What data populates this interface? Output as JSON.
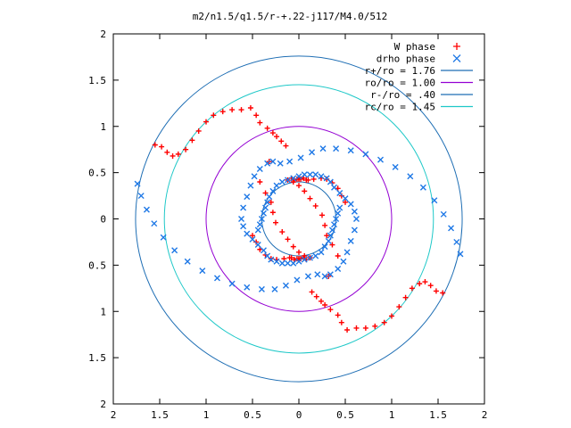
{
  "chart_data": {
    "type": "scatter",
    "title": "m2/n1.5/q1.5/r-+.22-j117/M4.0/512",
    "xlabel": "",
    "ylabel": "",
    "xlim": [
      -2,
      2
    ],
    "ylim": [
      -2,
      2
    ],
    "grid": false,
    "legend_position": "top-right",
    "x_ticks": [
      -2,
      -1.5,
      -1,
      -0.5,
      0,
      0.5,
      1,
      1.5,
      2
    ],
    "y_ticks": [
      -2,
      -1.5,
      -1,
      -0.5,
      0,
      0.5,
      1,
      1.5,
      2
    ],
    "x_tick_labels": [
      "2",
      "1.5",
      "1",
      "0.5",
      "0",
      "0.5",
      "1",
      "1.5",
      "2"
    ],
    "y_tick_labels": [
      "2",
      "1.5",
      "1",
      "0.5",
      "0",
      "0.5",
      "1",
      "1.5",
      "2"
    ],
    "circles": [
      {
        "name": "r+/ro = 1.76",
        "radius": 1.76,
        "color": "#1e6eb4"
      },
      {
        "name": "ro/ro = 1.00",
        "radius": 1.0,
        "color": "#9400d3"
      },
      {
        "name": "r-/ro = .40",
        "radius": 0.4,
        "color": "#1e6eb4"
      },
      {
        "name": "rc/ro = 1.45",
        "radius": 1.45,
        "color": "#1ec8c8"
      }
    ],
    "series": [
      {
        "name": "W phase",
        "marker": "+",
        "color": "#ff0000",
        "x": [
          -1.55,
          -1.48,
          -1.42,
          -1.36,
          -1.3,
          -1.22,
          -1.15,
          -1.08,
          -1.0,
          -0.92,
          -0.82,
          -0.72,
          -0.62,
          -0.52,
          -0.46,
          -0.42,
          -0.34,
          -0.28,
          -0.24,
          -0.19,
          -0.14,
          -0.32,
          -0.42,
          -0.36,
          -0.3,
          -0.28,
          -0.25,
          -0.18,
          -0.12,
          -0.06,
          0.0,
          0.06,
          0.12,
          0.1,
          0.05,
          0.02,
          0.0,
          -0.02,
          -0.05,
          -0.08,
          0.0,
          0.08,
          0.16,
          0.24,
          0.3,
          0.36,
          0.42,
          0.46,
          0.5,
          1.55,
          1.48,
          1.42,
          1.36,
          1.3,
          1.22,
          1.15,
          1.08,
          1.0,
          0.92,
          0.82,
          0.72,
          0.62,
          0.52,
          0.46,
          0.42,
          0.34,
          0.28,
          0.24,
          0.19,
          0.14,
          0.32,
          0.42,
          0.36,
          0.3,
          0.28,
          0.25,
          0.18,
          0.12,
          0.06,
          0.0,
          -0.06,
          -0.12,
          -0.1,
          -0.05,
          -0.02,
          0.0,
          0.02,
          0.05,
          0.08,
          0.0,
          -0.08,
          -0.16,
          -0.24,
          -0.3,
          -0.36,
          -0.42,
          -0.46,
          -0.5
        ],
        "y": [
          0.8,
          0.78,
          0.72,
          0.68,
          0.7,
          0.75,
          0.85,
          0.95,
          1.05,
          1.12,
          1.16,
          1.18,
          1.18,
          1.2,
          1.12,
          1.04,
          0.98,
          0.93,
          0.89,
          0.84,
          0.79,
          0.62,
          0.4,
          0.28,
          0.18,
          0.07,
          -0.04,
          -0.14,
          -0.22,
          -0.3,
          -0.36,
          -0.4,
          -0.42,
          0.42,
          0.44,
          0.43,
          0.44,
          0.43,
          0.42,
          0.44,
          0.43,
          0.42,
          0.43,
          0.44,
          0.43,
          0.39,
          0.33,
          0.25,
          0.18,
          -0.8,
          -0.78,
          -0.72,
          -0.68,
          -0.7,
          -0.75,
          -0.85,
          -0.95,
          -1.05,
          -1.12,
          -1.16,
          -1.18,
          -1.18,
          -1.2,
          -1.12,
          -1.04,
          -0.98,
          -0.93,
          -0.89,
          -0.84,
          -0.79,
          -0.62,
          -0.4,
          -0.28,
          -0.18,
          -0.07,
          0.04,
          0.14,
          0.22,
          0.3,
          0.36,
          0.4,
          0.42,
          -0.42,
          -0.44,
          -0.43,
          -0.44,
          -0.43,
          -0.42,
          -0.44,
          -0.43,
          -0.42,
          -0.43,
          -0.44,
          -0.43,
          -0.39,
          -0.33,
          -0.25,
          -0.18
        ]
      },
      {
        "name": "drho phase",
        "marker": "x",
        "color": "#1e78e6",
        "x": [
          -1.74,
          -1.7,
          -1.64,
          -1.56,
          -1.46,
          -1.34,
          -1.2,
          -1.04,
          -0.88,
          -0.72,
          -0.56,
          -0.4,
          -0.26,
          -0.14,
          -0.02,
          0.1,
          0.2,
          0.28,
          0.34,
          0.42,
          0.48,
          0.52,
          0.56,
          0.6,
          0.62,
          0.6,
          0.56,
          0.5,
          0.44,
          0.38,
          0.34,
          0.3,
          0.24,
          0.18,
          0.12,
          0.06,
          0.0,
          -0.06,
          -0.12,
          -0.18,
          -0.24,
          -0.28,
          -0.32,
          -0.34,
          -0.36,
          -0.38,
          -0.4,
          -0.42,
          -0.44,
          1.74,
          1.7,
          1.64,
          1.56,
          1.46,
          1.34,
          1.2,
          1.04,
          0.88,
          0.72,
          0.56,
          0.4,
          0.26,
          0.14,
          0.02,
          -0.1,
          -0.2,
          -0.28,
          -0.34,
          -0.42,
          -0.48,
          -0.52,
          -0.56,
          -0.6,
          -0.62,
          -0.6,
          -0.56,
          -0.5,
          -0.44,
          -0.38,
          -0.34,
          -0.3,
          -0.24,
          -0.18,
          -0.12,
          -0.06,
          0.0,
          0.06,
          0.12,
          0.18,
          0.24,
          0.28,
          0.32,
          0.34,
          0.36,
          0.38,
          0.4,
          0.42,
          0.44
        ],
        "y": [
          0.38,
          0.25,
          0.1,
          -0.05,
          -0.2,
          -0.34,
          -0.46,
          -0.56,
          -0.64,
          -0.7,
          -0.74,
          -0.76,
          -0.76,
          -0.72,
          -0.66,
          -0.62,
          -0.6,
          -0.62,
          -0.6,
          -0.54,
          -0.46,
          -0.36,
          -0.24,
          -0.12,
          0.0,
          0.08,
          0.16,
          0.22,
          0.28,
          0.34,
          0.4,
          0.44,
          0.46,
          0.48,
          0.48,
          0.48,
          0.46,
          0.44,
          0.42,
          0.4,
          0.36,
          0.3,
          0.24,
          0.18,
          0.12,
          0.06,
          0.0,
          -0.06,
          -0.12,
          -0.38,
          -0.25,
          -0.1,
          0.05,
          0.2,
          0.34,
          0.46,
          0.56,
          0.64,
          0.7,
          0.74,
          0.76,
          0.76,
          0.72,
          0.66,
          0.62,
          0.6,
          0.62,
          0.6,
          0.54,
          0.46,
          0.36,
          0.24,
          0.12,
          0.0,
          -0.08,
          -0.16,
          -0.22,
          -0.28,
          -0.34,
          -0.4,
          -0.44,
          -0.46,
          -0.48,
          -0.48,
          -0.48,
          -0.46,
          -0.44,
          -0.42,
          -0.4,
          -0.36,
          -0.3,
          -0.24,
          -0.18,
          -0.12,
          -0.06,
          0.0,
          0.06,
          0.12
        ]
      }
    ]
  }
}
